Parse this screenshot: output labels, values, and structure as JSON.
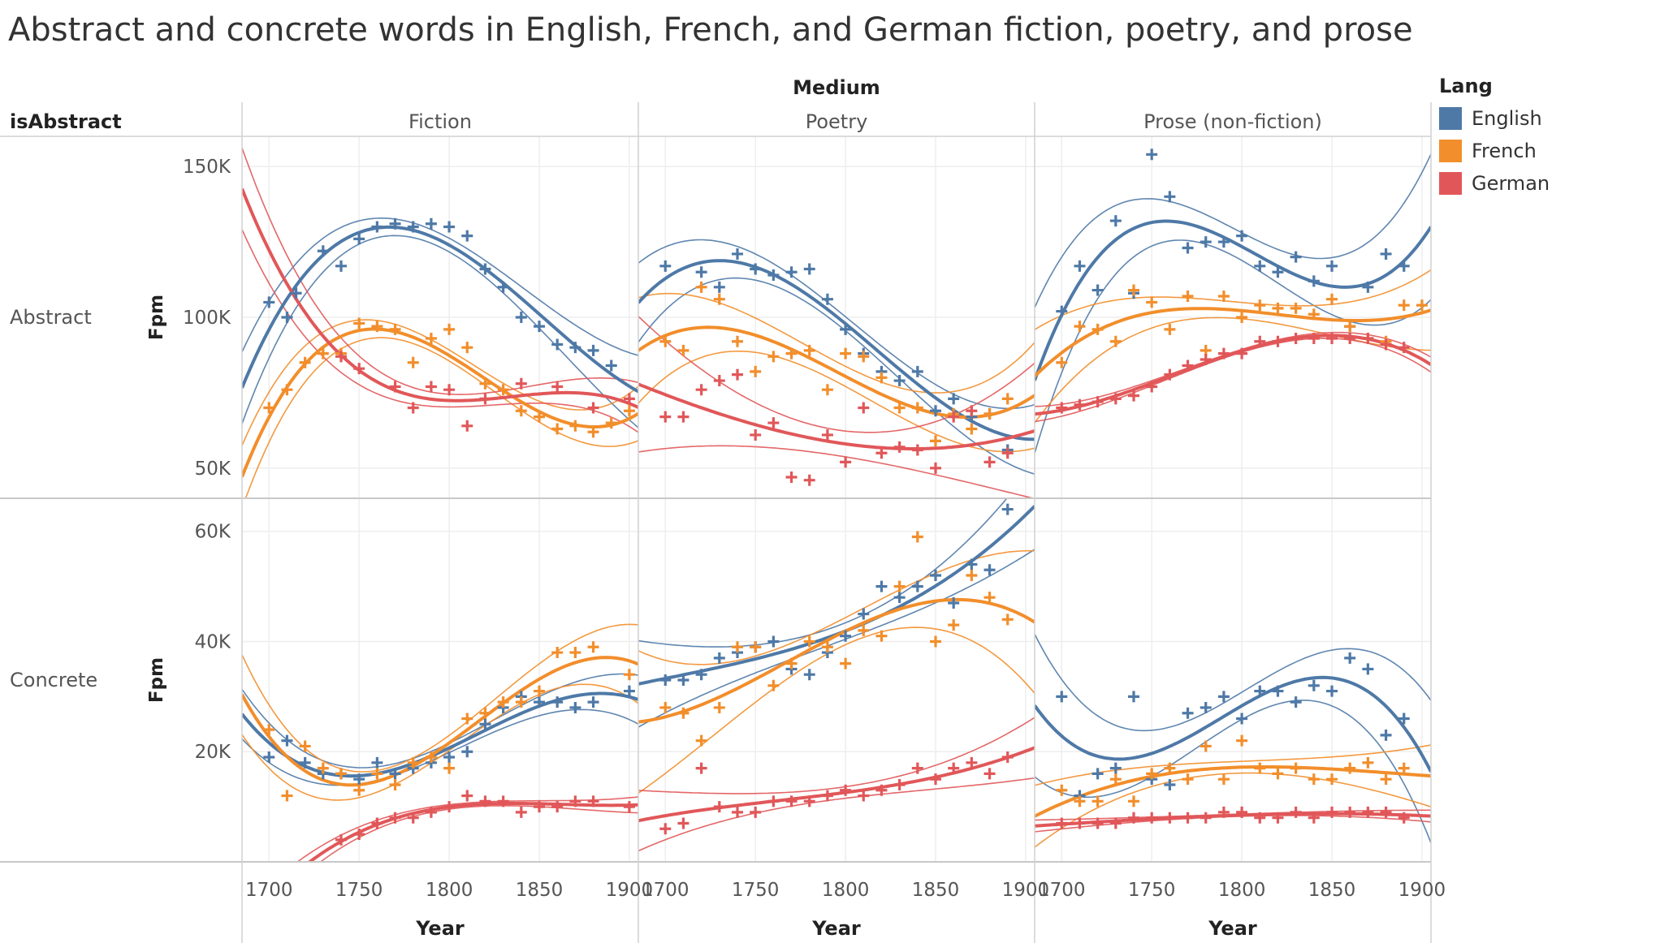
{
  "title": "Abstract and concrete words in English, French, and German fiction, poetry, and prose",
  "legend": {
    "title": "Lang",
    "items": [
      {
        "label": "English",
        "color": "#4e79a7"
      },
      {
        "label": "French",
        "color": "#f28e2b"
      },
      {
        "label": "German",
        "color": "#e15759"
      }
    ]
  },
  "chart_data": {
    "type": "scatter",
    "column_header": "Medium",
    "row_header": "isAbstract",
    "columns": [
      "Fiction",
      "Poetry",
      "Prose (non-fiction)"
    ],
    "rows": [
      "Abstract",
      "Concrete"
    ],
    "xlabel": "Year",
    "ylabel": "Fpm",
    "xlim": [
      1685,
      1905
    ],
    "x_ticks": [
      1700,
      1750,
      1800,
      1850,
      1900
    ],
    "x_tick_labels": [
      "1700",
      "1750",
      "1800",
      "1850",
      "1900"
    ],
    "y_axes": {
      "Abstract": {
        "ylim": [
          40000,
          160000
        ],
        "ticks": [
          50000,
          100000,
          150000
        ],
        "tick_labels": [
          "50K",
          "100K",
          "150K"
        ]
      },
      "Concrete": {
        "ylim": [
          0,
          66000
        ],
        "ticks": [
          20000,
          40000,
          60000
        ],
        "tick_labels": [
          "20K",
          "40K",
          "60K"
        ]
      }
    },
    "trend": "polynomial fit with confidence bands",
    "grid": true,
    "legend_position": "right",
    "panels": [
      {
        "row": "Abstract",
        "column": "Fiction",
        "series": [
          {
            "name": "English",
            "x": [
              1700,
              1710,
              1715,
              1730,
              1740,
              1750,
              1760,
              1770,
              1780,
              1790,
              1800,
              1810,
              1820,
              1830,
              1840,
              1850,
              1860,
              1870,
              1880,
              1890
            ],
            "y": [
              105000,
              100000,
              108000,
              122000,
              117000,
              126000,
              130000,
              131000,
              130000,
              131000,
              130000,
              127000,
              116000,
              110000,
              100000,
              97000,
              91000,
              90000,
              89000,
              84000
            ]
          },
          {
            "name": "French",
            "x": [
              1700,
              1710,
              1720,
              1730,
              1740,
              1750,
              1760,
              1770,
              1780,
              1790,
              1800,
              1810,
              1820,
              1830,
              1840,
              1850,
              1860,
              1870,
              1880,
              1890,
              1900
            ],
            "y": [
              70000,
              76000,
              85000,
              88000,
              88000,
              98000,
              97000,
              96000,
              85000,
              93000,
              96000,
              90000,
              78000,
              76000,
              69000,
              67000,
              63000,
              64000,
              62000,
              65000,
              69000
            ]
          },
          {
            "name": "German",
            "x": [
              1740,
              1750,
              1770,
              1780,
              1790,
              1800,
              1810,
              1820,
              1840,
              1860,
              1880,
              1900
            ],
            "y": [
              87000,
              83000,
              77000,
              70000,
              77000,
              76000,
              64000,
              73000,
              78000,
              77000,
              70000,
              73000
            ]
          }
        ]
      },
      {
        "row": "Abstract",
        "column": "Poetry",
        "series": [
          {
            "name": "English",
            "x": [
              1700,
              1720,
              1730,
              1740,
              1750,
              1760,
              1770,
              1780,
              1790,
              1800,
              1810,
              1820,
              1830,
              1840,
              1850,
              1860,
              1870,
              1880,
              1890
            ],
            "y": [
              117000,
              115000,
              110000,
              121000,
              116000,
              114000,
              115000,
              116000,
              106000,
              96000,
              88000,
              82000,
              79000,
              82000,
              69000,
              73000,
              67000,
              68000,
              56000
            ]
          },
          {
            "name": "French",
            "x": [
              1700,
              1710,
              1720,
              1730,
              1740,
              1750,
              1760,
              1770,
              1780,
              1790,
              1800,
              1810,
              1820,
              1830,
              1840,
              1850,
              1860,
              1870,
              1880,
              1890
            ],
            "y": [
              92000,
              89000,
              110000,
              106000,
              92000,
              82000,
              87000,
              88000,
              89000,
              76000,
              88000,
              87000,
              80000,
              70000,
              70000,
              59000,
              68000,
              63000,
              68000,
              73000
            ]
          },
          {
            "name": "German",
            "x": [
              1700,
              1710,
              1720,
              1730,
              1740,
              1750,
              1760,
              1770,
              1780,
              1790,
              1800,
              1810,
              1820,
              1830,
              1840,
              1850,
              1860,
              1870,
              1880,
              1890
            ],
            "y": [
              67000,
              67000,
              76000,
              79000,
              81000,
              61000,
              65000,
              47000,
              46000,
              61000,
              52000,
              70000,
              55000,
              57000,
              56000,
              50000,
              67000,
              69000,
              52000,
              55000
            ]
          }
        ]
      },
      {
        "row": "Abstract",
        "column": "Prose (non-fiction)",
        "series": [
          {
            "name": "English",
            "x": [
              1700,
              1710,
              1720,
              1730,
              1740,
              1750,
              1760,
              1770,
              1780,
              1790,
              1800,
              1810,
              1820,
              1830,
              1840,
              1850,
              1860,
              1870,
              1880,
              1890
            ],
            "y": [
              102000,
              117000,
              109000,
              132000,
              108000,
              154000,
              140000,
              123000,
              125000,
              125000,
              127000,
              117000,
              115000,
              120000,
              112000,
              117000,
              97000,
              110000,
              121000,
              117000
            ]
          },
          {
            "name": "French",
            "x": [
              1700,
              1710,
              1720,
              1730,
              1740,
              1750,
              1760,
              1770,
              1780,
              1790,
              1800,
              1810,
              1820,
              1830,
              1840,
              1850,
              1860,
              1870,
              1880,
              1890,
              1900
            ],
            "y": [
              85000,
              97000,
              96000,
              92000,
              109000,
              105000,
              96000,
              107000,
              89000,
              107000,
              100000,
              104000,
              103000,
              103000,
              101000,
              106000,
              97000,
              93000,
              92000,
              104000,
              104000
            ]
          },
          {
            "name": "German",
            "x": [
              1700,
              1710,
              1720,
              1730,
              1740,
              1750,
              1760,
              1770,
              1780,
              1790,
              1800,
              1810,
              1820,
              1830,
              1840,
              1850,
              1860,
              1870,
              1880,
              1890
            ],
            "y": [
              70000,
              71000,
              72000,
              73000,
              74000,
              77000,
              81000,
              84000,
              86000,
              88000,
              88000,
              92000,
              92000,
              93000,
              93000,
              93000,
              93000,
              93000,
              91000,
              90000
            ]
          }
        ]
      },
      {
        "row": "Concrete",
        "column": "Fiction",
        "series": [
          {
            "name": "English",
            "x": [
              1700,
              1710,
              1720,
              1730,
              1740,
              1750,
              1760,
              1770,
              1780,
              1790,
              1800,
              1810,
              1820,
              1830,
              1840,
              1850,
              1860,
              1870,
              1880,
              1900
            ],
            "y": [
              19000,
              22000,
              18000,
              16000,
              16000,
              15000,
              18000,
              16000,
              17000,
              18000,
              19000,
              20000,
              25000,
              28000,
              30000,
              29000,
              29000,
              28000,
              29000,
              31000
            ]
          },
          {
            "name": "French",
            "x": [
              1700,
              1710,
              1720,
              1730,
              1740,
              1750,
              1760,
              1770,
              1780,
              1790,
              1800,
              1810,
              1820,
              1830,
              1840,
              1850,
              1860,
              1870,
              1880,
              1900
            ],
            "y": [
              24000,
              12000,
              21000,
              17000,
              16000,
              13000,
              16000,
              14000,
              18000,
              19000,
              17000,
              26000,
              27000,
              29000,
              29000,
              31000,
              38000,
              38000,
              39000,
              34000
            ]
          },
          {
            "name": "German",
            "x": [
              1740,
              1750,
              1760,
              1770,
              1780,
              1790,
              1800,
              1810,
              1820,
              1830,
              1840,
              1850,
              1860,
              1870,
              1880,
              1900
            ],
            "y": [
              4000,
              5000,
              7000,
              8000,
              8000,
              9000,
              10000,
              12000,
              11000,
              11000,
              9000,
              10000,
              10000,
              11000,
              11000,
              10000
            ]
          }
        ]
      },
      {
        "row": "Concrete",
        "column": "Poetry",
        "series": [
          {
            "name": "English",
            "x": [
              1700,
              1710,
              1720,
              1730,
              1740,
              1750,
              1760,
              1770,
              1780,
              1790,
              1800,
              1810,
              1820,
              1830,
              1840,
              1850,
              1860,
              1870,
              1880,
              1890
            ],
            "y": [
              33000,
              33000,
              34000,
              37000,
              38000,
              39000,
              40000,
              35000,
              34000,
              38000,
              41000,
              45000,
              50000,
              48000,
              50000,
              52000,
              47000,
              54000,
              53000,
              64000
            ]
          },
          {
            "name": "French",
            "x": [
              1700,
              1710,
              1720,
              1730,
              1740,
              1750,
              1760,
              1770,
              1780,
              1790,
              1800,
              1810,
              1820,
              1830,
              1840,
              1850,
              1860,
              1870,
              1880,
              1890
            ],
            "y": [
              28000,
              27000,
              22000,
              28000,
              39000,
              39000,
              32000,
              36000,
              40000,
              39000,
              36000,
              42000,
              41000,
              50000,
              59000,
              40000,
              43000,
              52000,
              48000,
              44000
            ]
          },
          {
            "name": "German",
            "x": [
              1700,
              1710,
              1720,
              1730,
              1740,
              1750,
              1760,
              1770,
              1780,
              1790,
              1800,
              1810,
              1820,
              1830,
              1840,
              1850,
              1860,
              1870,
              1880,
              1890
            ],
            "y": [
              6000,
              7000,
              17000,
              10000,
              9000,
              9000,
              11000,
              11000,
              11000,
              12000,
              13000,
              12000,
              13000,
              14000,
              17000,
              15000,
              17000,
              18000,
              16000,
              19000
            ]
          }
        ]
      },
      {
        "row": "Concrete",
        "column": "Prose (non-fiction)",
        "series": [
          {
            "name": "English",
            "x": [
              1700,
              1710,
              1720,
              1730,
              1740,
              1750,
              1760,
              1770,
              1780,
              1790,
              1800,
              1810,
              1820,
              1830,
              1840,
              1850,
              1860,
              1870,
              1880,
              1890
            ],
            "y": [
              30000,
              12000,
              16000,
              17000,
              30000,
              15000,
              14000,
              27000,
              28000,
              30000,
              26000,
              31000,
              31000,
              29000,
              32000,
              31000,
              37000,
              35000,
              23000,
              26000
            ]
          },
          {
            "name": "French",
            "x": [
              1700,
              1710,
              1720,
              1730,
              1740,
              1750,
              1760,
              1770,
              1780,
              1790,
              1800,
              1810,
              1820,
              1830,
              1840,
              1850,
              1860,
              1870,
              1880,
              1890
            ],
            "y": [
              13000,
              11000,
              11000,
              15000,
              11000,
              16000,
              17000,
              15000,
              21000,
              15000,
              22000,
              17000,
              16000,
              17000,
              15000,
              15000,
              17000,
              18000,
              15000,
              17000
            ]
          },
          {
            "name": "German",
            "x": [
              1700,
              1710,
              1720,
              1730,
              1740,
              1750,
              1760,
              1770,
              1780,
              1790,
              1800,
              1810,
              1820,
              1830,
              1840,
              1850,
              1860,
              1870,
              1880,
              1890
            ],
            "y": [
              7000,
              7000,
              7000,
              7000,
              8000,
              8000,
              8000,
              8000,
              8000,
              9000,
              9000,
              8000,
              8000,
              9000,
              8000,
              9000,
              9000,
              9000,
              9000,
              8000
            ]
          }
        ]
      }
    ]
  }
}
